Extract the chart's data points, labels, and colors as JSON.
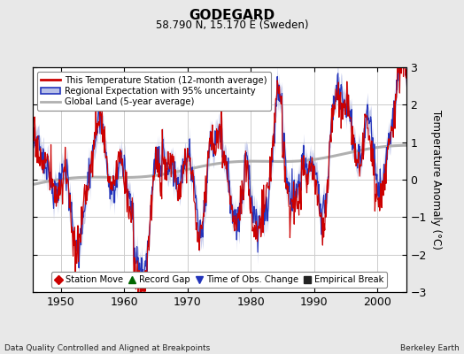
{
  "title": "GODEGARD",
  "subtitle": "58.790 N, 15.170 E (Sweden)",
  "ylabel": "Temperature Anomaly (°C)",
  "xlim": [
    1945.5,
    2004.5
  ],
  "ylim": [
    -3,
    3
  ],
  "xticks": [
    1950,
    1960,
    1970,
    1980,
    1990,
    2000
  ],
  "yticks": [
    -3,
    -2,
    -1,
    0,
    1,
    2,
    3
  ],
  "footer_left": "Data Quality Controlled and Aligned at Breakpoints",
  "footer_right": "Berkeley Earth",
  "legend1_labels": [
    "This Temperature Station (12-month average)",
    "Regional Expectation with 95% uncertainty",
    "Global Land (5-year average)"
  ],
  "legend2_labels": [
    "Station Move",
    "Record Gap",
    "Time of Obs. Change",
    "Empirical Break"
  ],
  "red_color": "#cc0000",
  "blue_color": "#2233bb",
  "blue_fill_color": "#b8c0e8",
  "gray_color": "#b0b0b0",
  "bg_color": "#e8e8e8",
  "plot_bg_color": "#ffffff",
  "grid_color": "#cccccc",
  "green_color": "#006600"
}
